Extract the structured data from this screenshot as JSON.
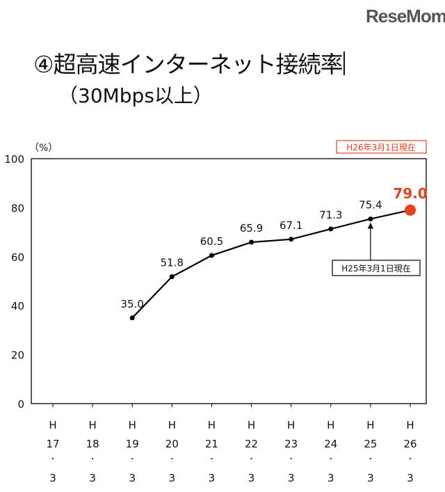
{
  "title": "④超高速インターネット接続率",
  "subtitle": "（30Mbps以上）",
  "watermark": "ReseMom",
  "chart_data": {
    "type": "line",
    "ylabel": "（%）",
    "ylim": [
      0,
      100
    ],
    "yticks": [
      0,
      20,
      40,
      60,
      80,
      100
    ],
    "grid": false,
    "categories": [
      {
        "era": "H",
        "year": "17",
        "sep": "・",
        "month": "3"
      },
      {
        "era": "H",
        "year": "18",
        "sep": "・",
        "month": "3"
      },
      {
        "era": "H",
        "year": "19",
        "sep": "・",
        "month": "3"
      },
      {
        "era": "H",
        "year": "20",
        "sep": "・",
        "month": "3"
      },
      {
        "era": "H",
        "year": "21",
        "sep": "・",
        "month": "3"
      },
      {
        "era": "H",
        "year": "22",
        "sep": "・",
        "month": "3"
      },
      {
        "era": "H",
        "year": "23",
        "sep": "・",
        "month": "3"
      },
      {
        "era": "H",
        "year": "24",
        "sep": "・",
        "month": "3"
      },
      {
        "era": "H",
        "year": "25",
        "sep": "・",
        "month": "3"
      },
      {
        "era": "H",
        "year": "26",
        "sep": "・",
        "month": "3"
      }
    ],
    "values": [
      null,
      null,
      35.0,
      51.8,
      60.5,
      65.9,
      67.1,
      71.3,
      75.4,
      79.0
    ],
    "data_labels": [
      "",
      "",
      "35.0",
      "51.8",
      "60.5",
      "65.9",
      "67.1",
      "71.3",
      "75.4",
      "79.0"
    ],
    "highlight_color": "#e8411e",
    "line_color": "#000000",
    "annotations": {
      "current": "H26年3月1日現在",
      "previous": "H25年3月1日現在"
    }
  }
}
